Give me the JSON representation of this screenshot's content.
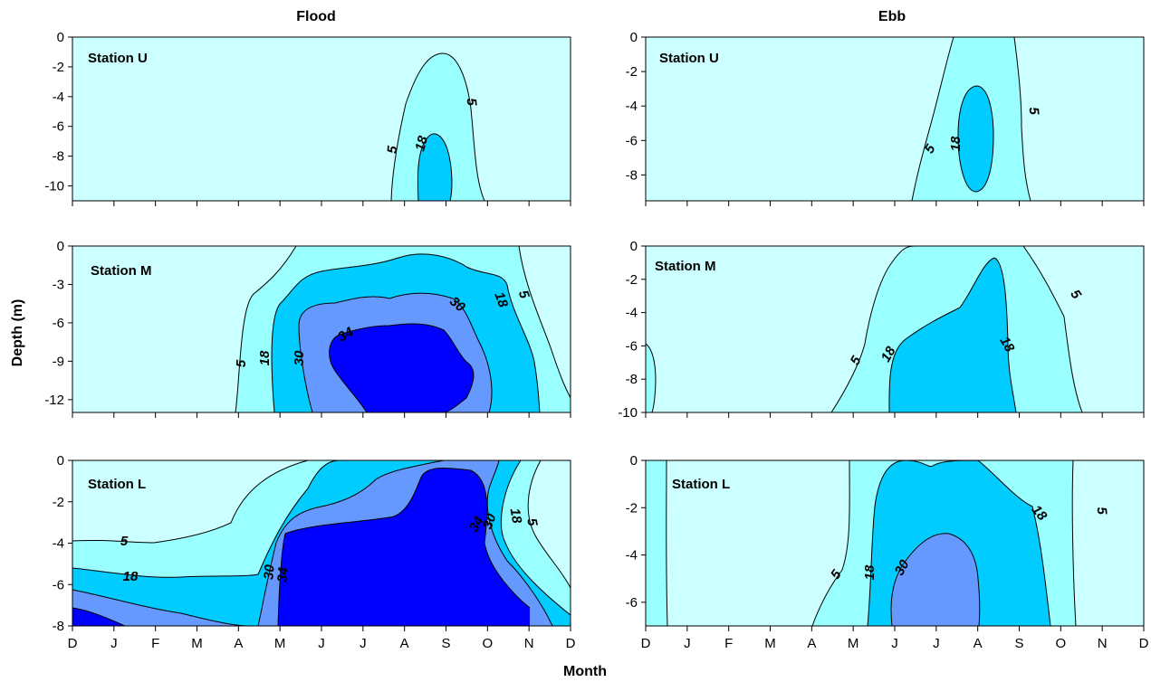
{
  "chart_data": {
    "type": "contour",
    "legend": "none",
    "grid": false,
    "xlabel": "Month",
    "ylabel": "Depth (m)",
    "month_ticks": [
      "D",
      "J",
      "F",
      "M",
      "A",
      "M",
      "J",
      "J",
      "A",
      "S",
      "O",
      "N",
      "D"
    ],
    "contour_levels": [
      5,
      18,
      30,
      34
    ],
    "colors": {
      "below_5": "#ccffff",
      "5_to_18": "#99ffff",
      "18_to_30": "#00ccff",
      "30_to_34": "#6699ff",
      "above_34": "#0000ff"
    },
    "columns": [
      {
        "title": "Flood",
        "key": "flood"
      },
      {
        "title": "Ebb",
        "key": "ebb"
      }
    ],
    "panels": [
      {
        "column": "flood",
        "station": "Station U",
        "ylim": [
          -11,
          0
        ],
        "yticks": [
          0,
          -2,
          -4,
          -6,
          -8,
          -10
        ]
      },
      {
        "column": "flood",
        "station": "Station M",
        "ylim": [
          -13,
          0
        ],
        "yticks": [
          0,
          -3,
          -6,
          -9,
          -12
        ]
      },
      {
        "column": "flood",
        "station": "Station L",
        "ylim": [
          -8,
          0
        ],
        "yticks": [
          0,
          -2,
          -4,
          -6,
          -8
        ]
      },
      {
        "column": "ebb",
        "station": "Station U",
        "ylim": [
          -9.5,
          0
        ],
        "yticks": [
          0,
          -2,
          -4,
          -6,
          -8
        ]
      },
      {
        "column": "ebb",
        "station": "Station M",
        "ylim": [
          -10,
          0
        ],
        "yticks": [
          0,
          -2,
          -4,
          -6,
          -8,
          -10
        ]
      },
      {
        "column": "ebb",
        "station": "Station L",
        "ylim": [
          -7,
          0
        ],
        "yticks": [
          0,
          -2,
          -4,
          -6
        ]
      }
    ]
  }
}
